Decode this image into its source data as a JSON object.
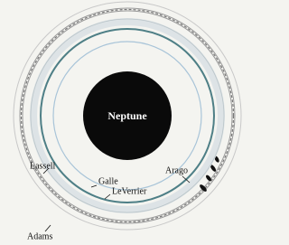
{
  "planet": {
    "label": "Neptune"
  },
  "rings": [
    {
      "label": "Galle"
    },
    {
      "label": "LeVerrier"
    },
    {
      "label": "Lassell"
    },
    {
      "label": "Arago"
    },
    {
      "label": "Adams"
    }
  ]
}
